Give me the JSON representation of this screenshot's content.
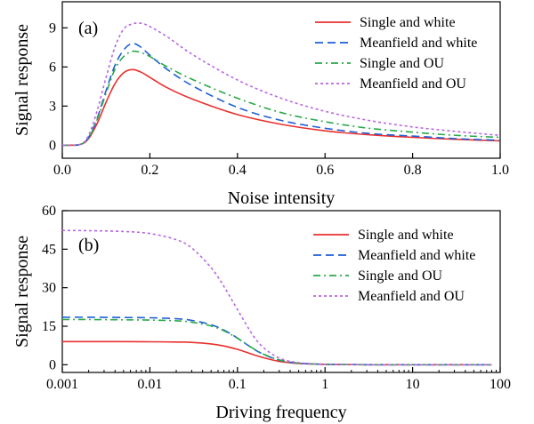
{
  "chart_data": [
    {
      "panel_label": "(a)",
      "type": "line",
      "xlabel": "Noise intensity",
      "ylabel": "Signal response",
      "xlim": [
        0.0,
        1.0
      ],
      "ylim": [
        -1,
        11
      ],
      "x_scale": "linear",
      "x_ticks": [
        0.0,
        0.2,
        0.4,
        0.6,
        0.8,
        1.0
      ],
      "x_tick_labels": [
        "0.0",
        "0.2",
        "0.4",
        "0.6",
        "0.8",
        "1.0"
      ],
      "y_ticks": [
        0,
        3,
        6,
        9
      ],
      "y_tick_labels": [
        "0",
        "3",
        "6",
        "9"
      ],
      "legend_position": "top-right",
      "grid": false,
      "x": [
        0.0,
        0.04,
        0.06,
        0.08,
        0.1,
        0.12,
        0.14,
        0.16,
        0.18,
        0.2,
        0.24,
        0.3,
        0.4,
        0.5,
        0.6,
        0.7,
        0.8,
        0.9,
        1.0
      ],
      "series": [
        {
          "name": "Single and white",
          "color": "#e8302e",
          "dash": "solid",
          "values": [
            0,
            0.05,
            0.5,
            1.7,
            3.3,
            4.7,
            5.55,
            5.8,
            5.6,
            5.2,
            4.4,
            3.5,
            2.35,
            1.6,
            1.1,
            0.8,
            0.6,
            0.45,
            0.33
          ]
        },
        {
          "name": "Meanfield and white",
          "color": "#1f5fd6",
          "dash": "dashed",
          "values": [
            0,
            0.05,
            0.6,
            2.1,
            4.2,
            6.1,
            7.3,
            7.8,
            7.5,
            6.9,
            5.8,
            4.5,
            2.9,
            1.9,
            1.3,
            0.9,
            0.7,
            0.5,
            0.38
          ]
        },
        {
          "name": "Single and OU",
          "color": "#2aa84a",
          "dash": "dashdot",
          "values": [
            0,
            0.05,
            0.55,
            2.0,
            4.0,
            5.8,
            6.8,
            7.2,
            7.1,
            6.8,
            6.0,
            5.0,
            3.6,
            2.5,
            1.8,
            1.3,
            1.0,
            0.75,
            0.6
          ]
        },
        {
          "name": "Meanfield and OU",
          "color": "#b866e0",
          "dash": "dotted",
          "values": [
            0,
            0.06,
            0.75,
            2.7,
            5.2,
            7.5,
            8.9,
            9.3,
            9.35,
            9.1,
            8.3,
            6.9,
            5.0,
            3.6,
            2.6,
            1.9,
            1.4,
            1.05,
            0.75
          ]
        }
      ]
    },
    {
      "panel_label": "(b)",
      "type": "line",
      "xlabel": "Driving frequency",
      "ylabel": "Signal response",
      "xlim": [
        0.001,
        100
      ],
      "ylim": [
        -3,
        60
      ],
      "x_scale": "log",
      "x_ticks": [
        0.001,
        0.01,
        0.1,
        1,
        10,
        100
      ],
      "x_tick_labels": [
        "0.001",
        "0.01",
        "0.1",
        "1",
        "10",
        "100"
      ],
      "y_ticks": [
        0,
        15,
        30,
        45,
        60
      ],
      "y_tick_labels": [
        "0",
        "15",
        "30",
        "45",
        "60"
      ],
      "legend_position": "top-right",
      "grid": false,
      "x": [
        0.001,
        0.002,
        0.005,
        0.01,
        0.02,
        0.03,
        0.05,
        0.07,
        0.1,
        0.15,
        0.2,
        0.3,
        0.5,
        1,
        2,
        5,
        10,
        30,
        80
      ],
      "series": [
        {
          "name": "Single and white",
          "color": "#e8302e",
          "dash": "solid",
          "values": [
            9.0,
            9.0,
            9.0,
            8.95,
            8.85,
            8.7,
            8.1,
            7.3,
            6.0,
            4.0,
            2.7,
            1.3,
            0.5,
            0.15,
            0.05,
            0.02,
            0.01,
            0.0,
            0.0
          ]
        },
        {
          "name": "Meanfield and white",
          "color": "#1f5fd6",
          "dash": "dashed",
          "values": [
            18.5,
            18.5,
            18.4,
            18.3,
            17.9,
            17.3,
            15.6,
            13.5,
            10.4,
            6.3,
            4.0,
            1.8,
            0.6,
            0.15,
            0.05,
            0.02,
            0.01,
            0.0,
            0.0
          ]
        },
        {
          "name": "Single and OU",
          "color": "#2aa84a",
          "dash": "dashdot",
          "values": [
            17.6,
            17.6,
            17.5,
            17.4,
            17.1,
            16.6,
            15.1,
            13.2,
            10.3,
            6.4,
            4.1,
            1.9,
            0.65,
            0.16,
            0.05,
            0.02,
            0.01,
            0.0,
            0.0
          ]
        },
        {
          "name": "Meanfield and OU",
          "color": "#b866e0",
          "dash": "dotted",
          "values": [
            52.3,
            52.2,
            51.9,
            51.1,
            48.7,
            45.5,
            37.8,
            30.5,
            21.5,
            11.5,
            6.6,
            2.6,
            0.8,
            0.2,
            0.06,
            0.02,
            0.01,
            0.0,
            0.0
          ]
        }
      ]
    }
  ]
}
